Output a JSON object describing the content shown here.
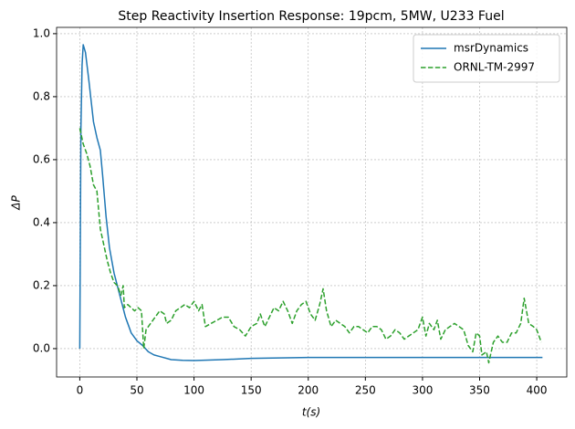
{
  "chart_data": {
    "type": "line",
    "title": "Step Reactivity Insertion Response: 19pcm, 5MW, U233 Fuel",
    "x_label": "t(s)",
    "y_label": "ΔP",
    "xlim": [
      -20.3,
      426.3
    ],
    "ylim": [
      -0.09,
      1.02
    ],
    "xticks": [
      0,
      50,
      100,
      150,
      200,
      250,
      300,
      350,
      400
    ],
    "yticks": [
      {
        "value": 0,
        "label": "0.0"
      },
      0.2,
      0.4,
      0.6,
      0.8,
      {
        "value": 1,
        "label": "1.0"
      }
    ],
    "grid": true,
    "legend": "upper right",
    "series": [
      {
        "name": "msrDynamics",
        "color": "#1f77b4",
        "dash": false,
        "x": [
          0,
          1,
          2,
          3,
          5,
          8,
          12,
          15,
          18,
          20,
          23,
          26,
          30,
          35,
          40,
          45,
          50,
          55,
          60,
          65,
          70,
          80,
          90,
          100,
          125,
          150,
          200,
          250,
          300,
          350,
          405
        ],
        "values": [
          0,
          0.7,
          0.9,
          0.965,
          0.94,
          0.85,
          0.72,
          0.67,
          0.63,
          0.55,
          0.42,
          0.32,
          0.24,
          0.17,
          0.1,
          0.05,
          0.025,
          0.01,
          -0.01,
          -0.02,
          -0.025,
          -0.035,
          -0.037,
          -0.038,
          -0.035,
          -0.031,
          -0.028,
          -0.028,
          -0.028,
          -0.028,
          -0.028
        ]
      },
      {
        "name": "ORNL-TM-2997",
        "color": "#2ca02c",
        "dash": true,
        "x": [
          0,
          3,
          6,
          9,
          12,
          15,
          18,
          21,
          24,
          27,
          30,
          33,
          36,
          38,
          39,
          42,
          45,
          48,
          51,
          54,
          56,
          58,
          62,
          66,
          70,
          74,
          76,
          80,
          84,
          88,
          92,
          96,
          100,
          104,
          107,
          110,
          115,
          120,
          125,
          130,
          135,
          140,
          145,
          150,
          155,
          158,
          162,
          166,
          170,
          174,
          178,
          182,
          186,
          190,
          194,
          198,
          202,
          206,
          210,
          213,
          216,
          220,
          224,
          228,
          232,
          236,
          240,
          244,
          248,
          252,
          256,
          260,
          264,
          268,
          272,
          276,
          280,
          284,
          288,
          292,
          296,
          300,
          303,
          306,
          310,
          313,
          316,
          320,
          324,
          328,
          332,
          336,
          340,
          344,
          347,
          350,
          352,
          356,
          358,
          362,
          366,
          370,
          374,
          378,
          382,
          386,
          389,
          393,
          397,
          400,
          404
        ],
        "values": [
          0.7,
          0.65,
          0.62,
          0.58,
          0.52,
          0.5,
          0.38,
          0.33,
          0.28,
          0.24,
          0.21,
          0.2,
          0.17,
          0.2,
          0.13,
          0.14,
          0.13,
          0.12,
          0.13,
          0.12,
          0.0,
          0.06,
          0.08,
          0.1,
          0.12,
          0.11,
          0.08,
          0.09,
          0.12,
          0.13,
          0.14,
          0.13,
          0.15,
          0.12,
          0.14,
          0.07,
          0.08,
          0.09,
          0.1,
          0.1,
          0.07,
          0.06,
          0.04,
          0.07,
          0.08,
          0.11,
          0.07,
          0.1,
          0.13,
          0.12,
          0.15,
          0.12,
          0.08,
          0.12,
          0.14,
          0.15,
          0.11,
          0.09,
          0.14,
          0.19,
          0.12,
          0.07,
          0.09,
          0.08,
          0.07,
          0.05,
          0.07,
          0.07,
          0.06,
          0.05,
          0.07,
          0.07,
          0.06,
          0.03,
          0.04,
          0.06,
          0.05,
          0.03,
          0.04,
          0.05,
          0.06,
          0.1,
          0.04,
          0.08,
          0.06,
          0.09,
          0.03,
          0.06,
          0.07,
          0.08,
          0.07,
          0.06,
          0.01,
          -0.01,
          0.05,
          0.04,
          -0.02,
          -0.01,
          -0.045,
          0.02,
          0.04,
          0.02,
          0.02,
          0.05,
          0.05,
          0.08,
          0.16,
          0.08,
          0.07,
          0.06,
          0.02
        ]
      }
    ]
  }
}
